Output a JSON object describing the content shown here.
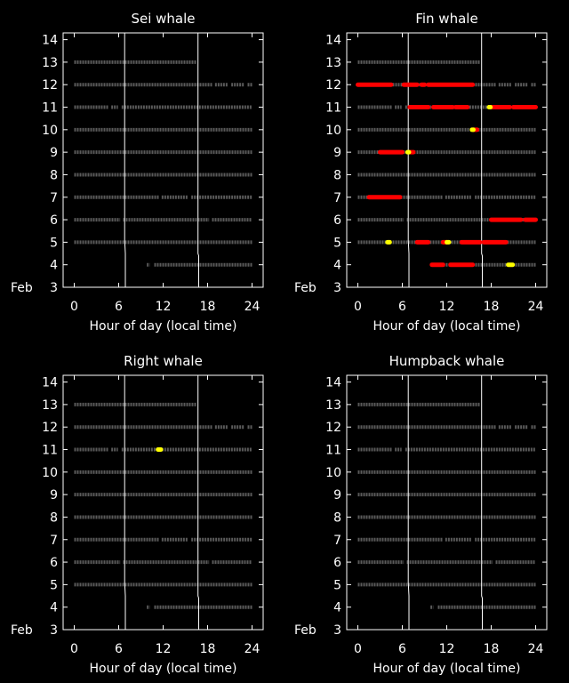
{
  "chart_data": [
    {
      "type": "scatter",
      "title": "Sei whale",
      "xlabel": "Hour of day (local time)",
      "ylabel": "Feb",
      "xlim": [
        -1.5,
        25.5
      ],
      "ylim": [
        3,
        14.3
      ],
      "xticks": [
        "0",
        "6",
        "12",
        "18",
        "24"
      ],
      "yticks": [
        "3",
        "4",
        "5",
        "6",
        "7",
        "8",
        "9",
        "10",
        "11",
        "12",
        "13",
        "14"
      ],
      "grid": false,
      "sunrise_line": [
        [
          6.8,
          14.3
        ],
        [
          6.8,
          5.1
        ],
        [
          6.9,
          4.5
        ],
        [
          6.9,
          3
        ]
      ],
      "sunset_line": [
        [
          16.7,
          14.3
        ],
        [
          16.7,
          4.5
        ],
        [
          16.8,
          4.4
        ],
        [
          16.8,
          3
        ]
      ],
      "effort": [
        {
          "day": 13,
          "segments": [
            [
              0,
              16.5
            ]
          ]
        },
        {
          "day": 12,
          "segments": [
            [
              0,
              18.6
            ],
            [
              19.0,
              20.8
            ],
            [
              21.2,
              23.0
            ],
            [
              23.4,
              24
            ]
          ]
        },
        {
          "day": 11,
          "segments": [
            [
              0,
              4.6
            ],
            [
              5.0,
              5.9
            ],
            [
              6.4,
              24
            ]
          ]
        },
        {
          "day": 10,
          "segments": [
            [
              0,
              24
            ]
          ]
        },
        {
          "day": 9,
          "segments": [
            [
              0,
              24
            ]
          ]
        },
        {
          "day": 8,
          "segments": [
            [
              0,
              24
            ]
          ]
        },
        {
          "day": 7,
          "segments": [
            [
              0,
              11.4
            ],
            [
              11.8,
              15.4
            ],
            [
              15.8,
              24
            ]
          ]
        },
        {
          "day": 6,
          "segments": [
            [
              0,
              6.2
            ],
            [
              6.6,
              18.2
            ],
            [
              18.6,
              24
            ]
          ]
        },
        {
          "day": 5,
          "segments": [
            [
              0,
              24
            ]
          ]
        },
        {
          "day": 4,
          "segments": [
            [
              9.8,
              10.2
            ],
            [
              10.8,
              24
            ]
          ]
        }
      ],
      "detections": []
    },
    {
      "type": "scatter",
      "title": "Fin whale",
      "xlabel": "Hour of day (local time)",
      "ylabel": "Feb",
      "xlim": [
        -1.5,
        25.5
      ],
      "ylim": [
        3,
        14.3
      ],
      "xticks": [
        "0",
        "6",
        "12",
        "18",
        "24"
      ],
      "yticks": [
        "3",
        "4",
        "5",
        "6",
        "7",
        "8",
        "9",
        "10",
        "11",
        "12",
        "13",
        "14"
      ],
      "grid": false,
      "sunrise_line": [
        [
          6.8,
          14.3
        ],
        [
          6.8,
          5.1
        ],
        [
          6.9,
          4.5
        ],
        [
          6.9,
          3
        ]
      ],
      "sunset_line": [
        [
          16.7,
          14.3
        ],
        [
          16.7,
          4.5
        ],
        [
          16.8,
          4.4
        ],
        [
          16.8,
          3
        ]
      ],
      "effort": [
        {
          "day": 13,
          "segments": [
            [
              0,
              16.5
            ]
          ]
        },
        {
          "day": 12,
          "segments": [
            [
              0,
              18.6
            ],
            [
              19.0,
              20.8
            ],
            [
              21.2,
              23.0
            ],
            [
              23.4,
              24
            ]
          ]
        },
        {
          "day": 11,
          "segments": [
            [
              0,
              4.6
            ],
            [
              5.0,
              5.9
            ],
            [
              6.4,
              24
            ]
          ]
        },
        {
          "day": 10,
          "segments": [
            [
              0,
              24
            ]
          ]
        },
        {
          "day": 9,
          "segments": [
            [
              0,
              24
            ]
          ]
        },
        {
          "day": 8,
          "segments": [
            [
              0,
              24
            ]
          ]
        },
        {
          "day": 7,
          "segments": [
            [
              0,
              11.4
            ],
            [
              11.8,
              15.4
            ],
            [
              15.8,
              24
            ]
          ]
        },
        {
          "day": 6,
          "segments": [
            [
              0,
              6.2
            ],
            [
              6.6,
              18.2
            ],
            [
              18.6,
              24
            ]
          ]
        },
        {
          "day": 5,
          "segments": [
            [
              0,
              24
            ]
          ]
        },
        {
          "day": 4,
          "segments": [
            [
              9.8,
              10.2
            ],
            [
              10.8,
              24
            ]
          ]
        }
      ],
      "detections": [
        {
          "day": 12,
          "color": "#ff0000",
          "segments": [
            [
              0,
              4.5
            ],
            [
              6.2,
              8.0
            ],
            [
              8.6,
              9.0
            ],
            [
              9.5,
              15.5
            ]
          ]
        },
        {
          "day": 11,
          "color": "#ff0000",
          "segments": [
            [
              7.0,
              9.5
            ],
            [
              10.2,
              12.8
            ],
            [
              13.2,
              14.8
            ],
            [
              18.0,
              20.5
            ],
            [
              21.0,
              24
            ]
          ]
        },
        {
          "day": 11,
          "color": "#ffff00",
          "segments": [
            [
              17.7,
              17.9
            ]
          ]
        },
        {
          "day": 10,
          "color": "#ff0000",
          "segments": [
            [
              15.6,
              16.1
            ]
          ]
        },
        {
          "day": 10,
          "color": "#ffff00",
          "segments": [
            [
              15.4,
              15.6
            ]
          ]
        },
        {
          "day": 9,
          "color": "#ff0000",
          "segments": [
            [
              3.0,
              6.0
            ],
            [
              7.0,
              7.5
            ]
          ]
        },
        {
          "day": 9,
          "color": "#ffff00",
          "segments": [
            [
              6.7,
              6.9
            ]
          ]
        },
        {
          "day": 7,
          "color": "#ff0000",
          "segments": [
            [
              1.5,
              5.7
            ]
          ]
        },
        {
          "day": 6,
          "color": "#ff0000",
          "segments": [
            [
              18.0,
              22.0
            ],
            [
              22.6,
              24
            ]
          ]
        },
        {
          "day": 5,
          "color": "#ff0000",
          "segments": [
            [
              8.0,
              9.5
            ],
            [
              11.5,
              12.0
            ],
            [
              14.0,
              16.5
            ],
            [
              17.0,
              20.0
            ]
          ]
        },
        {
          "day": 5,
          "color": "#ffff00",
          "segments": [
            [
              4.0,
              4.3
            ],
            [
              12.0,
              12.3
            ]
          ]
        },
        {
          "day": 4,
          "color": "#ff0000",
          "segments": [
            [
              10.0,
              11.5
            ],
            [
              12.5,
              15.5
            ]
          ]
        },
        {
          "day": 4,
          "color": "#ffff00",
          "segments": [
            [
              20.3,
              20.9
            ]
          ]
        }
      ]
    },
    {
      "type": "scatter",
      "title": "Right whale",
      "xlabel": "Hour of day (local time)",
      "ylabel": "Feb",
      "xlim": [
        -1.5,
        25.5
      ],
      "ylim": [
        3,
        14.3
      ],
      "xticks": [
        "0",
        "6",
        "12",
        "18",
        "24"
      ],
      "yticks": [
        "3",
        "4",
        "5",
        "6",
        "7",
        "8",
        "9",
        "10",
        "11",
        "12",
        "13",
        "14"
      ],
      "grid": false,
      "sunrise_line": [
        [
          6.8,
          14.3
        ],
        [
          6.8,
          5.1
        ],
        [
          6.9,
          4.5
        ],
        [
          6.9,
          3
        ]
      ],
      "sunset_line": [
        [
          16.7,
          14.3
        ],
        [
          16.7,
          4.5
        ],
        [
          16.8,
          4.4
        ],
        [
          16.8,
          3
        ]
      ],
      "effort": [
        {
          "day": 13,
          "segments": [
            [
              0,
              16.5
            ]
          ]
        },
        {
          "day": 12,
          "segments": [
            [
              0,
              18.6
            ],
            [
              19.0,
              20.8
            ],
            [
              21.2,
              23.0
            ],
            [
              23.4,
              24
            ]
          ]
        },
        {
          "day": 11,
          "segments": [
            [
              0,
              4.6
            ],
            [
              5.0,
              5.9
            ],
            [
              6.4,
              24
            ]
          ]
        },
        {
          "day": 10,
          "segments": [
            [
              0,
              24
            ]
          ]
        },
        {
          "day": 9,
          "segments": [
            [
              0,
              24
            ]
          ]
        },
        {
          "day": 8,
          "segments": [
            [
              0,
              24
            ]
          ]
        },
        {
          "day": 7,
          "segments": [
            [
              0,
              11.4
            ],
            [
              11.8,
              15.4
            ],
            [
              15.8,
              24
            ]
          ]
        },
        {
          "day": 6,
          "segments": [
            [
              0,
              6.2
            ],
            [
              6.6,
              18.2
            ],
            [
              18.6,
              24
            ]
          ]
        },
        {
          "day": 5,
          "segments": [
            [
              0,
              24
            ]
          ]
        },
        {
          "day": 4,
          "segments": [
            [
              9.8,
              10.2
            ],
            [
              10.8,
              24
            ]
          ]
        }
      ],
      "detections": [
        {
          "day": 11,
          "color": "#ffff00",
          "segments": [
            [
              11.3,
              11.7
            ]
          ]
        }
      ]
    },
    {
      "type": "scatter",
      "title": "Humpback whale",
      "xlabel": "Hour of day (local time)",
      "ylabel": "Feb",
      "xlim": [
        -1.5,
        25.5
      ],
      "ylim": [
        3,
        14.3
      ],
      "xticks": [
        "0",
        "6",
        "12",
        "18",
        "24"
      ],
      "yticks": [
        "3",
        "4",
        "5",
        "6",
        "7",
        "8",
        "9",
        "10",
        "11",
        "12",
        "13",
        "14"
      ],
      "grid": false,
      "sunrise_line": [
        [
          6.8,
          14.3
        ],
        [
          6.8,
          5.1
        ],
        [
          6.9,
          4.5
        ],
        [
          6.9,
          3
        ]
      ],
      "sunset_line": [
        [
          16.7,
          14.3
        ],
        [
          16.7,
          4.5
        ],
        [
          16.8,
          4.4
        ],
        [
          16.8,
          3
        ]
      ],
      "effort": [
        {
          "day": 13,
          "segments": [
            [
              0,
              16.5
            ]
          ]
        },
        {
          "day": 12,
          "segments": [
            [
              0,
              18.6
            ],
            [
              19.0,
              20.8
            ],
            [
              21.2,
              23.0
            ],
            [
              23.4,
              24
            ]
          ]
        },
        {
          "day": 11,
          "segments": [
            [
              0,
              4.6
            ],
            [
              5.0,
              5.9
            ],
            [
              6.4,
              24
            ]
          ]
        },
        {
          "day": 10,
          "segments": [
            [
              0,
              24
            ]
          ]
        },
        {
          "day": 9,
          "segments": [
            [
              0,
              24
            ]
          ]
        },
        {
          "day": 8,
          "segments": [
            [
              0,
              24
            ]
          ]
        },
        {
          "day": 7,
          "segments": [
            [
              0,
              11.4
            ],
            [
              11.8,
              15.4
            ],
            [
              15.8,
              24
            ]
          ]
        },
        {
          "day": 6,
          "segments": [
            [
              0,
              6.2
            ],
            [
              6.6,
              18.2
            ],
            [
              18.6,
              24
            ]
          ]
        },
        {
          "day": 5,
          "segments": [
            [
              0,
              24
            ]
          ]
        },
        {
          "day": 4,
          "segments": [
            [
              9.8,
              10.2
            ],
            [
              10.8,
              24
            ]
          ]
        }
      ],
      "detections": []
    }
  ],
  "colors": {
    "background": "#000000",
    "axes": "#ffffff",
    "effort": "#5a5a5a",
    "detection_high": "#ff0000",
    "detection_low": "#ffff00"
  }
}
